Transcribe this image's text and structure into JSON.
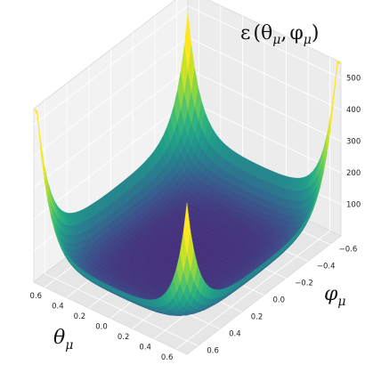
{
  "chart_data": {
    "type": "surface3d",
    "title": {
      "prefix": "ε",
      "open": "(",
      "a": "θ",
      "a_sub": "μ",
      "sep": ",",
      "b": "φ",
      "b_sub": "μ",
      "close": ")"
    },
    "xlabel": {
      "main": "θ",
      "sub": "μ"
    },
    "ylabel": {
      "main": "φ",
      "sub": "μ"
    },
    "zlabel": "",
    "x_ticks": [
      "0.6",
      "0.4",
      "0.2",
      "0.0",
      "0.2",
      "0.4",
      "0.6"
    ],
    "y_ticks": [
      "0.6",
      "0.4",
      "0.2",
      "0.0",
      "−0.2",
      "−0.4",
      "−0.6"
    ],
    "z_ticks": [
      "100",
      "200",
      "300",
      "400",
      "500"
    ],
    "x_range": [
      -0.7,
      0.7
    ],
    "y_range": [
      -0.7,
      0.7
    ],
    "zlim": [
      0,
      550
    ],
    "colormap": "viridis",
    "grid": true,
    "corner_peaks": [
      {
        "theta": -0.7,
        "phi": -0.7,
        "value": 300
      },
      {
        "theta": 0.7,
        "phi": -0.7,
        "value": 550
      },
      {
        "theta": 0.7,
        "phi": 0.7,
        "value": 300
      },
      {
        "theta": -0.7,
        "phi": 0.7,
        "value": 500
      }
    ],
    "floor_value": 10
  }
}
